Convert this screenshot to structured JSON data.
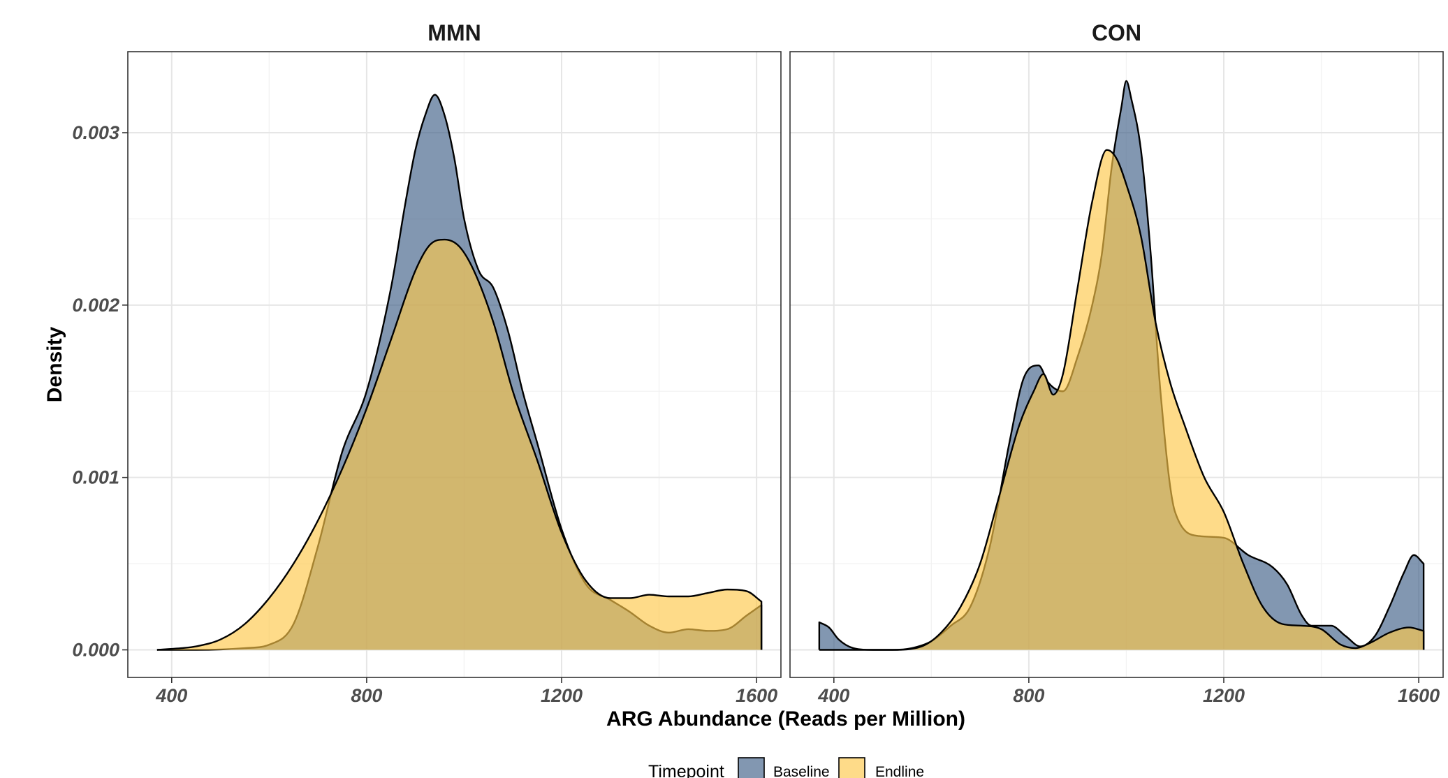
{
  "chart_data": {
    "type": "area",
    "subtype": "density",
    "xlabel": "ARG Abundance (Reads per Million)",
    "ylabel": "Density",
    "xlim": [
      310,
      1650
    ],
    "ylim": [
      -0.00016,
      0.00347
    ],
    "x_ticks": [
      400,
      800,
      1200,
      1600
    ],
    "x_tick_labels": [
      "400",
      "800",
      "1200",
      "1600"
    ],
    "y_ticks": [
      0.0,
      0.001,
      0.002,
      0.003
    ],
    "y_tick_labels": [
      "0.000",
      "0.001",
      "0.002",
      "0.003"
    ],
    "grid": true,
    "legend": {
      "title": "Timepoint",
      "position": "bottom",
      "entries": [
        {
          "label": "Baseline",
          "color": "#3f5f87"
        },
        {
          "label": "Endline",
          "color": "#fdc84a"
        }
      ]
    },
    "series_colors": {
      "Baseline": "#3f5f87",
      "Endline": "#fdc84a"
    },
    "fill_opacity": 0.65,
    "panels": [
      {
        "title": "MMN",
        "series": [
          {
            "name": "Baseline",
            "x": [
              370,
              450,
              550,
              600,
              650,
              700,
              750,
              800,
              850,
              880,
              900,
              920,
              940,
              960,
              980,
              1000,
              1030,
              1060,
              1090,
              1120,
              1150,
              1200,
              1250,
              1300,
              1340,
              1380,
              1420,
              1460,
              1500,
              1540,
              1580,
              1610
            ],
            "y": [
              0,
              0,
              1e-05,
              3e-05,
              0.00015,
              0.0006,
              0.00115,
              0.0015,
              0.0021,
              0.0026,
              0.0029,
              0.0031,
              0.00322,
              0.0031,
              0.00285,
              0.0025,
              0.0022,
              0.0021,
              0.00185,
              0.0015,
              0.0012,
              0.0007,
              0.00038,
              0.00029,
              0.00022,
              0.00014,
              0.0001,
              0.00012,
              0.00011,
              0.00012,
              0.0002,
              0.00026
            ]
          },
          {
            "name": "Endline",
            "x": [
              370,
              420,
              450,
              500,
              550,
              600,
              650,
              700,
              750,
              800,
              850,
              900,
              930,
              960,
              990,
              1020,
              1060,
              1100,
              1150,
              1200,
              1250,
              1300,
              1340,
              1380,
              1420,
              1460,
              1500,
              1540,
              1580,
              1610
            ],
            "y": [
              0,
              1e-05,
              2e-05,
              6e-05,
              0.00015,
              0.0003,
              0.0005,
              0.00075,
              0.00105,
              0.0014,
              0.0018,
              0.0022,
              0.00235,
              0.00238,
              0.00234,
              0.0022,
              0.0019,
              0.0015,
              0.0011,
              0.00068,
              0.0004,
              0.0003,
              0.0003,
              0.00032,
              0.00031,
              0.00031,
              0.00033,
              0.00035,
              0.00034,
              0.00028
            ]
          }
        ]
      },
      {
        "title": "CON",
        "series": [
          {
            "name": "Baseline",
            "x": [
              370,
              390,
              410,
              440,
              480,
              520,
              560,
              600,
              640,
              680,
              720,
              760,
              790,
              820,
              840,
              870,
              900,
              930,
              950,
              970,
              990,
              1000,
              1010,
              1030,
              1050,
              1070,
              1100,
              1150,
              1200,
              1250,
              1300,
              1330,
              1360,
              1380,
              1420,
              1450,
              1480,
              1510,
              1540,
              1570,
              1590,
              1610
            ],
            "y": [
              0.00016,
              0.00013,
              6e-05,
              1e-05,
              0,
              0,
              1e-05,
              5e-05,
              0.00014,
              0.00025,
              0.0006,
              0.0012,
              0.00158,
              0.00165,
              0.00155,
              0.0015,
              0.0017,
              0.002,
              0.0023,
              0.0028,
              0.00315,
              0.0033,
              0.0032,
              0.0029,
              0.0023,
              0.0015,
              0.0008,
              0.00066,
              0.00065,
              0.00055,
              0.00048,
              0.00038,
              0.0002,
              0.00014,
              0.00014,
              8e-05,
              2e-05,
              8e-05,
              0.00025,
              0.00045,
              0.00055,
              0.0005
            ]
          },
          {
            "name": "Endline",
            "x": [
              370,
              450,
              520,
              580,
              620,
              660,
              700,
              740,
              780,
              810,
              830,
              850,
              870,
              900,
              930,
              960,
              980,
              1000,
              1030,
              1060,
              1090,
              1120,
              1160,
              1200,
              1240,
              1280,
              1320,
              1360,
              1400,
              1440,
              1470,
              1500,
              1540,
              1580,
              1610
            ],
            "y": [
              0,
              0,
              0,
              2e-05,
              0.0001,
              0.00025,
              0.0005,
              0.0009,
              0.0013,
              0.0015,
              0.0016,
              0.00148,
              0.0016,
              0.0021,
              0.0026,
              0.0029,
              0.00285,
              0.0027,
              0.0024,
              0.0019,
              0.00155,
              0.0013,
              0.001,
              0.0008,
              0.0005,
              0.00025,
              0.00015,
              0.00014,
              0.00012,
              3e-05,
              1e-05,
              4e-05,
              0.0001,
              0.00013,
              0.00011
            ]
          }
        ]
      }
    ]
  }
}
